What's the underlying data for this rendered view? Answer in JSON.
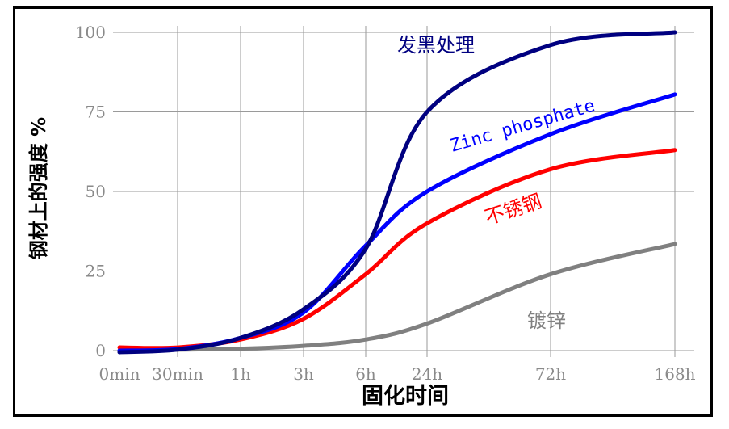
{
  "chart_data": {
    "type": "line",
    "title": "",
    "xlabel": "固化时间",
    "ylabel": "钢材上的强度 %",
    "x_ticks": [
      "0min",
      "30min",
      "1h",
      "3h",
      "6h",
      "24h",
      "72h",
      "168h"
    ],
    "y_ticks": [
      0,
      25,
      50,
      75,
      100
    ],
    "ylim": [
      0,
      100
    ],
    "grid": true,
    "series": [
      {
        "name": "镀锌",
        "color": "#808080",
        "values": [
          0,
          0.3,
          0.6,
          1.5,
          3.5,
          8.5,
          24,
          33.5
        ]
      },
      {
        "name": "不锈钢",
        "color": "#ff0000",
        "values": [
          1,
          1,
          3.5,
          10,
          24,
          40,
          57,
          63
        ]
      },
      {
        "name": "Zinc phosphate",
        "color": "#0000ff",
        "values": [
          0,
          0.5,
          4,
          12,
          33,
          50,
          68,
          80.5
        ]
      },
      {
        "name": "发黑处理",
        "color": "#000080",
        "values": [
          -0.5,
          0.3,
          4,
          13,
          32,
          75,
          96,
          100
        ]
      }
    ]
  }
}
